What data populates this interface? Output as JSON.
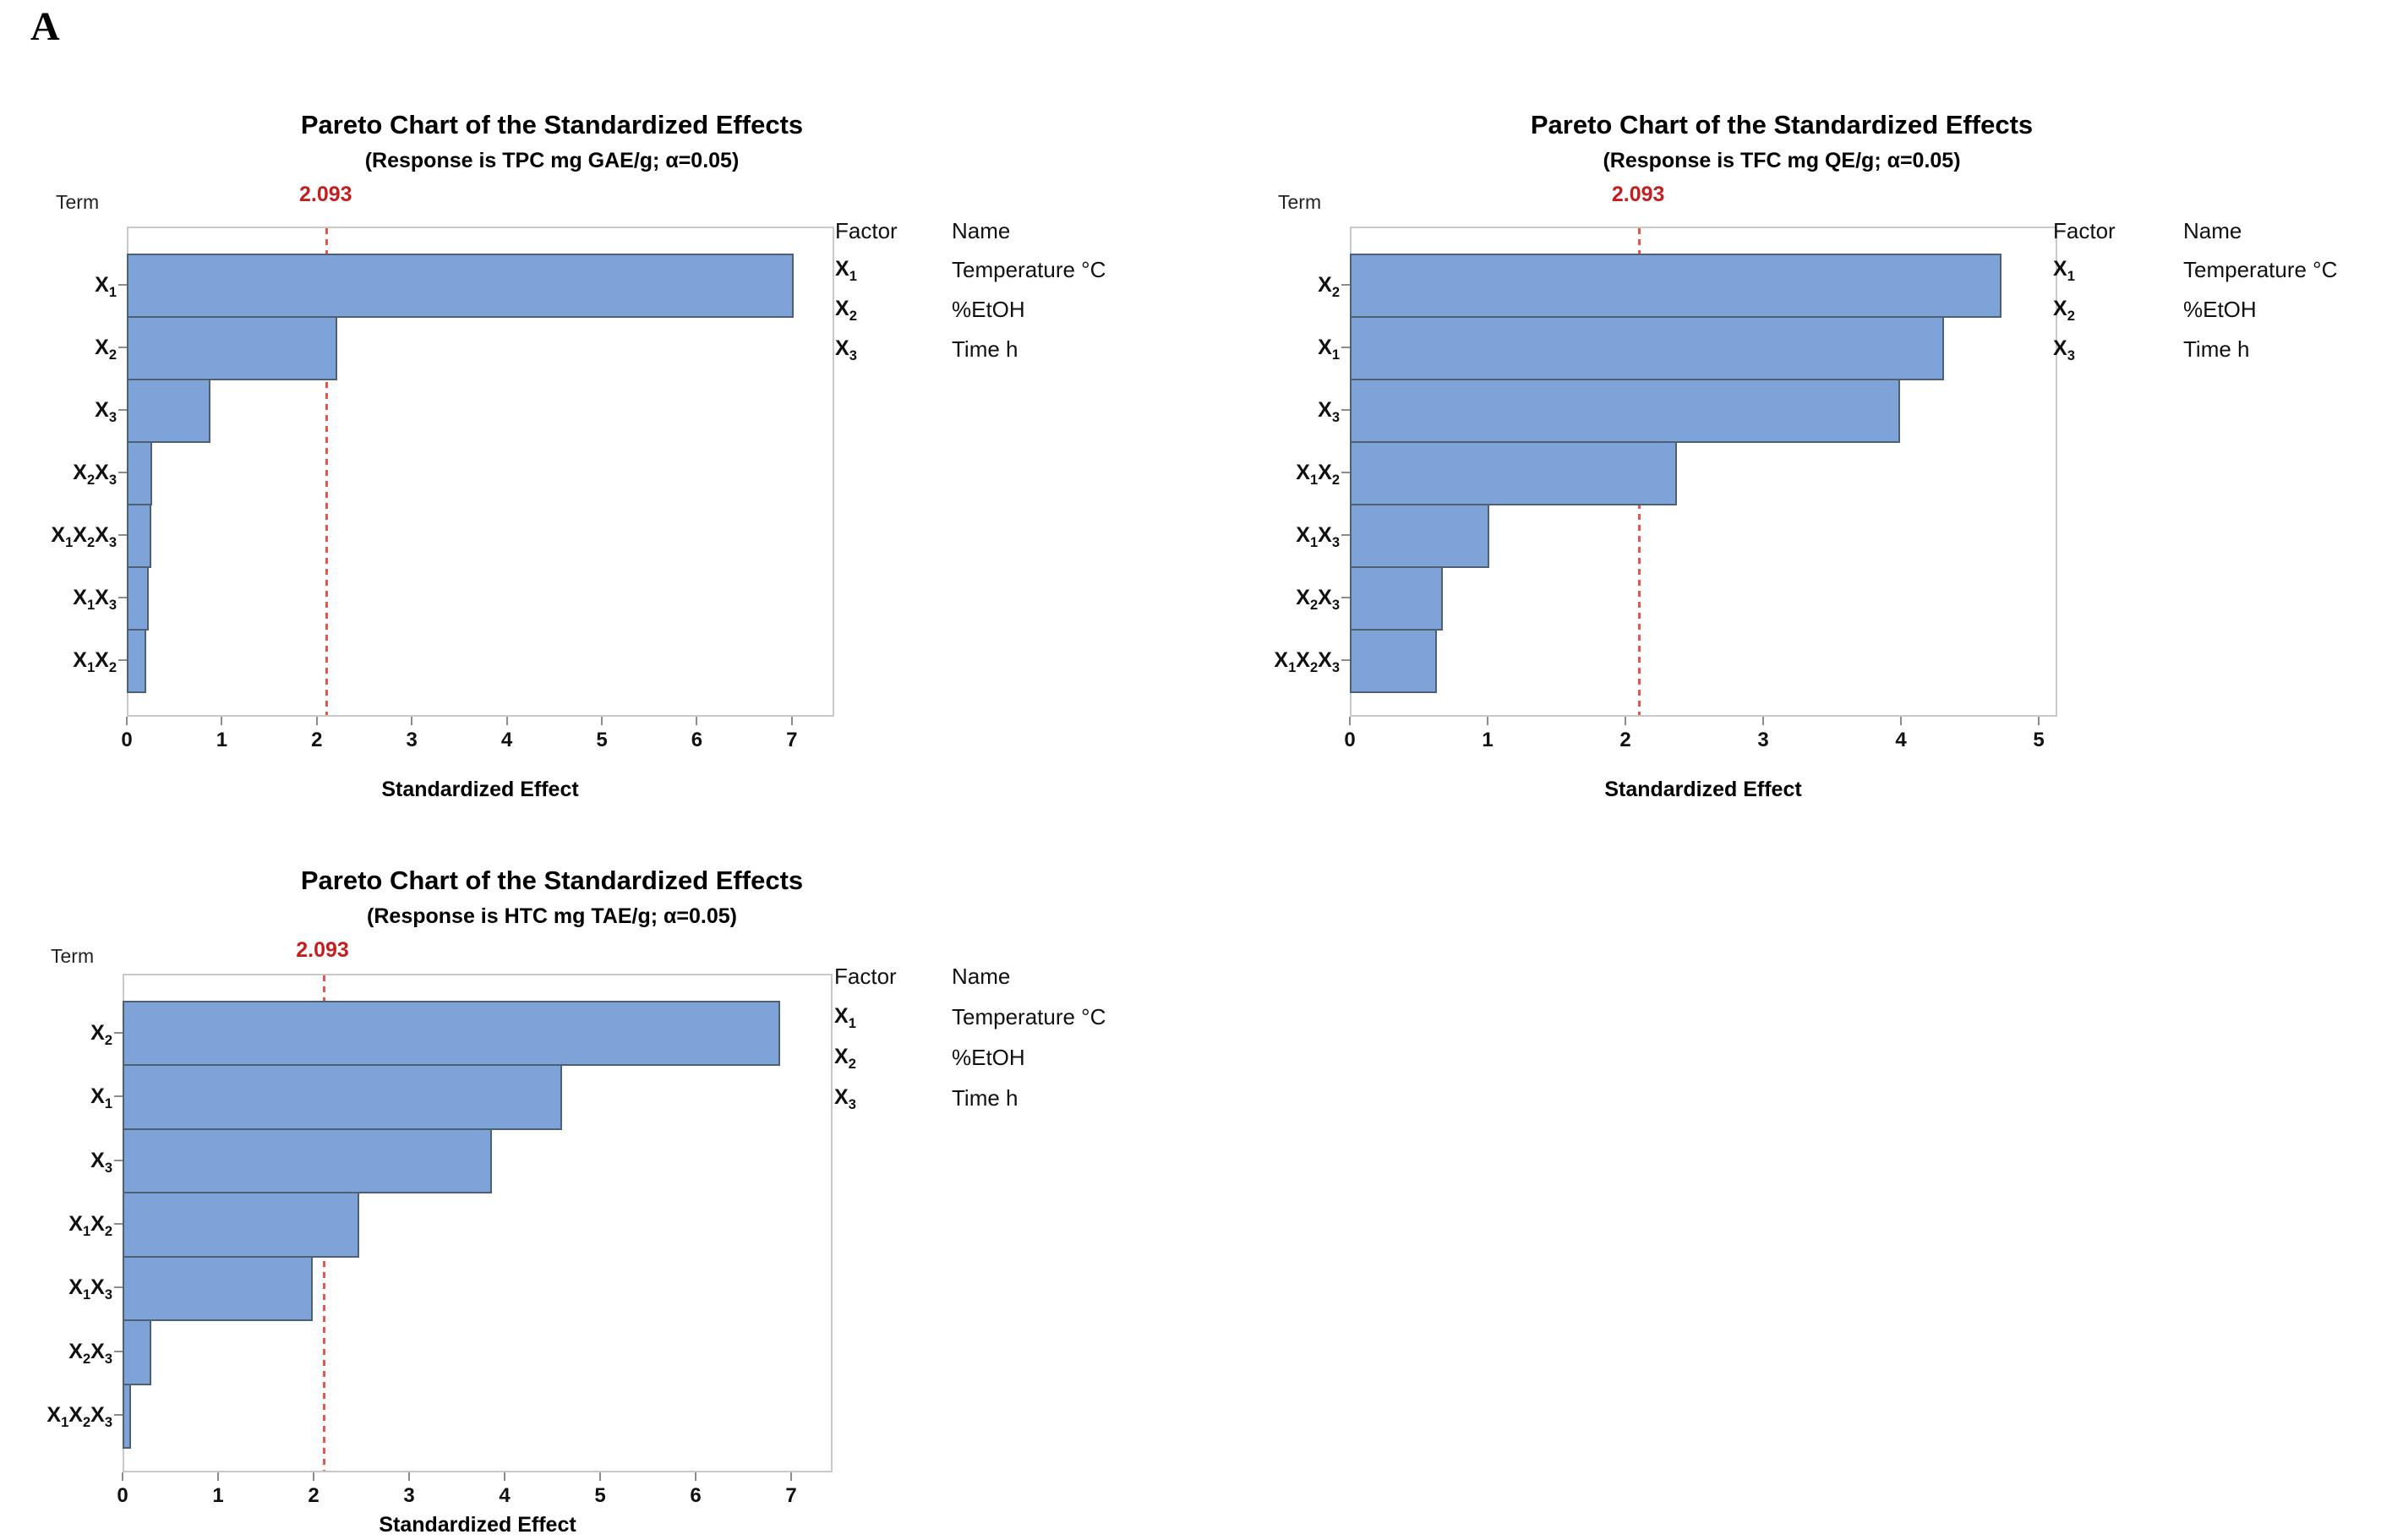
{
  "page": {
    "panel_label": "A"
  },
  "chart_data": [
    {
      "type": "bar",
      "orientation": "horizontal",
      "title": "Pareto Chart of the Standardized Effects",
      "subtitle": "(Response is TPC mg GAE/g; α=0.05)",
      "term_axis_label": "Term",
      "xlabel": "Standardized Effect",
      "categories": [
        "X1",
        "X2",
        "X3",
        "X2X3",
        "X1X2X3",
        "X1X3",
        "X1X2"
      ],
      "values": [
        7.0,
        2.2,
        0.86,
        0.25,
        0.24,
        0.21,
        0.19
      ],
      "xlim": [
        0,
        7.45
      ],
      "xticks": [
        0,
        1,
        2,
        3,
        4,
        5,
        6,
        7
      ],
      "grid": false,
      "reference_line": {
        "label": "2.093",
        "value": 2.093
      },
      "bar_color": "#7DA3D9",
      "bar_edge_color": "#4E6172",
      "reference_color": "#E4574C",
      "legend": {
        "factor_header": "Factor",
        "name_header": "Name",
        "rows": [
          {
            "factor": "X1",
            "name": "Temperature °C"
          },
          {
            "factor": "X2",
            "name": "%EtOH"
          },
          {
            "factor": "X3",
            "name": "Time h"
          }
        ]
      }
    },
    {
      "type": "bar",
      "orientation": "horizontal",
      "title": "Pareto Chart of the Standardized Effects",
      "subtitle": "(Response is TFC mg QE/g; α=0.05)",
      "term_axis_label": "Term",
      "xlabel": "Standardized Effect",
      "categories": [
        "X2",
        "X1",
        "X3",
        "X1X2",
        "X1X3",
        "X2X3",
        "X1X2X3"
      ],
      "values": [
        4.72,
        4.3,
        3.98,
        2.36,
        1.0,
        0.66,
        0.62
      ],
      "xlim": [
        0,
        5.15
      ],
      "xticks": [
        0,
        1,
        2,
        3,
        4,
        5
      ],
      "grid": false,
      "reference_line": {
        "label": "2.093",
        "value": 2.093
      },
      "bar_color": "#7DA3D9",
      "bar_edge_color": "#4E6172",
      "reference_color": "#E4574C",
      "legend": {
        "factor_header": "Factor",
        "name_header": "Name",
        "rows": [
          {
            "factor": "X1",
            "name": "Temperature °C"
          },
          {
            "factor": "X2",
            "name": "%EtOH"
          },
          {
            "factor": "X3",
            "name": "Time h"
          }
        ]
      }
    },
    {
      "type": "bar",
      "orientation": "horizontal",
      "title": "Pareto Chart of the Standardized Effects",
      "subtitle": "(Response is HTC mg TAE/g; α=0.05)",
      "term_axis_label": "Term",
      "xlabel": "Standardized Effect",
      "categories": [
        "X2",
        "X1",
        "X3",
        "X1X2",
        "X1X3",
        "X2X3",
        "X1X2X3"
      ],
      "values": [
        6.87,
        4.58,
        3.85,
        2.46,
        1.97,
        0.28,
        0.07
      ],
      "xlim": [
        0,
        7.43
      ],
      "xticks": [
        0,
        1,
        2,
        3,
        4,
        5,
        6,
        7
      ],
      "grid": false,
      "reference_line": {
        "label": "2.093",
        "value": 2.093
      },
      "bar_color": "#7DA3D9",
      "bar_edge_color": "#4E6172",
      "reference_color": "#E4574C",
      "legend": {
        "factor_header": "Factor",
        "name_header": "Name",
        "rows": [
          {
            "factor": "X1",
            "name": "Temperature °C"
          },
          {
            "factor": "X2",
            "name": "%EtOH"
          },
          {
            "factor": "X3",
            "name": "Time h"
          }
        ]
      }
    }
  ]
}
